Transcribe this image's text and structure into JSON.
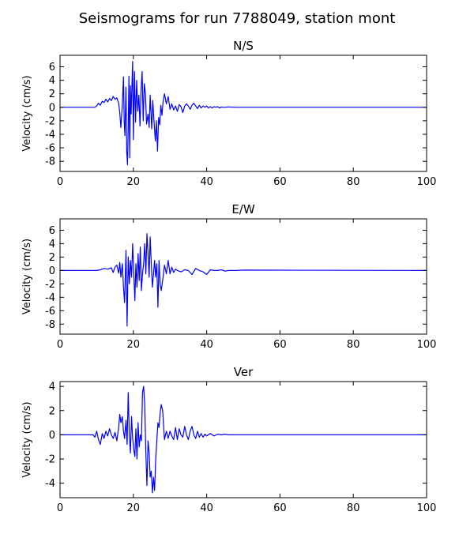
{
  "chart_data": {
    "type": "line",
    "title": "Seismograms for run 7788049, station mont",
    "panels": [
      {
        "title": "N/S",
        "ylabel": "Velocity (cm/s)",
        "xlim": [
          0,
          100
        ],
        "ylim": [
          -9.5,
          7.7
        ],
        "xticks": [
          0,
          20,
          40,
          60,
          80,
          100
        ],
        "yticks": [
          -8,
          -6,
          -4,
          -2,
          0,
          2,
          4,
          6
        ],
        "color": "#0000ff",
        "series": [
          {
            "x": [
              0,
              9.5,
              10,
              10.5,
              11,
              11.5,
              12,
              12.5,
              13,
              13.5,
              14,
              14.5,
              15,
              15.5,
              16,
              16.3,
              16.6,
              17,
              17.3,
              17.5,
              17.7,
              18,
              18.2,
              18.4,
              18.6,
              18.8,
              19,
              19.2,
              19.4,
              19.6,
              19.8,
              20,
              20.3,
              20.6,
              20.9,
              21.2,
              21.5,
              21.8,
              22.1,
              22.4,
              22.7,
              23,
              23.3,
              23.6,
              24,
              24.3,
              24.6,
              25,
              25.3,
              25.6,
              26,
              26.3,
              26.6,
              26.9,
              27.2,
              27.5,
              27.8,
              28.1,
              28.5,
              29,
              29.5,
              30,
              30.5,
              31,
              31.5,
              32,
              32.5,
              33,
              33.5,
              34,
              34.5,
              35,
              35.5,
              36,
              36.5,
              37,
              37.5,
              38,
              38.5,
              39,
              39.5,
              40,
              40.5,
              41,
              41.5,
              42,
              42.5,
              43,
              43.5,
              44,
              44.5,
              45,
              46,
              48,
              50,
              100
            ],
            "y": [
              0,
              0,
              0.2,
              0.6,
              0.3,
              0.9,
              0.7,
              1.2,
              0.8,
              1.3,
              1.0,
              1.6,
              1.2,
              1.4,
              0.6,
              -0.8,
              -3.0,
              0.5,
              4.5,
              -2.0,
              -4.2,
              3.0,
              -6.5,
              -8.5,
              -3.0,
              4.6,
              -7.5,
              3.2,
              -1.0,
              2.8,
              6.8,
              -4.8,
              5.3,
              -2.2,
              4.0,
              -0.6,
              1.8,
              -2.8,
              2.5,
              5.3,
              -2.0,
              3.5,
              2.0,
              -2.5,
              -1.0,
              -3.0,
              1.8,
              -3.2,
              1.0,
              -1.8,
              -5.0,
              -2.0,
              -6.5,
              -1.5,
              -2.6,
              0.3,
              -1.2,
              0.8,
              2.0,
              0.5,
              1.6,
              -0.3,
              0.5,
              -0.4,
              0.2,
              -0.6,
              0.4,
              0.1,
              -0.8,
              0.2,
              0.5,
              0.2,
              -0.3,
              0.3,
              0.6,
              0.2,
              -0.2,
              0.3,
              -0.1,
              0.2,
              0.0,
              0.2,
              -0.1,
              0.1,
              -0.1,
              0.1,
              0.0,
              0.1,
              -0.1,
              0.05,
              0.0,
              0.0,
              0.05,
              0.0,
              0.0,
              0.0
            ]
          }
        ]
      },
      {
        "title": "E/W",
        "ylabel": "Velocity (cm/s)",
        "xlim": [
          0,
          100
        ],
        "ylim": [
          -9.5,
          7.7
        ],
        "xticks": [
          0,
          20,
          40,
          60,
          80,
          100
        ],
        "yticks": [
          -8,
          -6,
          -4,
          -2,
          0,
          2,
          4,
          6
        ],
        "color": "#0000ff",
        "series": [
          {
            "x": [
              0,
              10,
              11,
              12,
              13,
              14,
              14.5,
              15,
              15.5,
              16,
              16.3,
              16.6,
              17,
              17.3,
              17.6,
              18,
              18.3,
              18.6,
              18.9,
              19.2,
              19.5,
              19.8,
              20.1,
              20.4,
              20.7,
              21,
              21.3,
              21.6,
              21.9,
              22.2,
              22.5,
              22.8,
              23.1,
              23.4,
              23.7,
              24,
              24.3,
              24.6,
              24.9,
              25.2,
              25.5,
              25.8,
              26.1,
              26.4,
              26.7,
              27,
              27.3,
              27.6,
              28,
              28.5,
              29,
              29.5,
              30,
              30.5,
              31,
              31.5,
              32,
              33,
              34,
              35,
              36,
              37,
              38,
              39,
              40,
              41,
              42,
              43,
              44,
              45,
              46,
              48,
              50,
              100
            ],
            "y": [
              0,
              0,
              0.1,
              0.3,
              0.2,
              0.4,
              -0.3,
              0.5,
              0.8,
              -0.4,
              1.2,
              -1.0,
              1.0,
              -2.5,
              -4.8,
              3.0,
              -8.3,
              2.0,
              -2.0,
              1.5,
              -1.0,
              4.0,
              -0.3,
              -4.5,
              1.0,
              -2.5,
              2.5,
              -1.5,
              3.5,
              -3.0,
              -0.5,
              1.0,
              4.0,
              -0.5,
              5.5,
              2.5,
              -1.0,
              5.0,
              1.0,
              -2.5,
              -0.5,
              1.5,
              -1.0,
              1.0,
              -5.5,
              1.5,
              -2.0,
              -3.0,
              -1.5,
              0.8,
              -0.5,
              1.5,
              -0.5,
              0.5,
              -0.3,
              0.2,
              0.0,
              -0.2,
              0.1,
              0.0,
              -0.6,
              0.3,
              0.0,
              -0.2,
              -0.6,
              0.1,
              0.0,
              0.0,
              0.1,
              -0.1,
              0.0,
              0.0,
              0.05,
              0.0
            ]
          }
        ]
      },
      {
        "title": "Ver",
        "ylabel": "Velocity (cm/s)",
        "xlim": [
          0,
          100
        ],
        "ylim": [
          -5.2,
          4.4
        ],
        "xticks": [
          0,
          20,
          40,
          60,
          80,
          100
        ],
        "yticks": [
          -4,
          -2,
          0,
          2,
          4
        ],
        "color": "#0000ff",
        "series": [
          {
            "x": [
              0,
              9,
              9.5,
              10,
              10.5,
              11,
              11.5,
              12,
              12.5,
              13,
              13.5,
              14,
              14.5,
              15,
              15.5,
              16,
              16.3,
              16.6,
              17,
              17.3,
              17.6,
              18,
              18.3,
              18.6,
              18.9,
              19.2,
              19.5,
              19.8,
              20.1,
              20.4,
              20.7,
              21,
              21.3,
              21.6,
              21.9,
              22.2,
              22.5,
              22.8,
              23.1,
              23.4,
              23.7,
              24,
              24.3,
              24.6,
              24.9,
              25.2,
              25.5,
              25.8,
              26.1,
              26.4,
              26.7,
              27,
              27.3,
              27.6,
              28,
              28.5,
              29,
              29.5,
              30,
              30.5,
              31,
              31.5,
              32,
              32.5,
              33,
              33.5,
              34,
              34.5,
              35,
              35.5,
              36,
              36.5,
              37,
              37.5,
              38,
              38.5,
              39,
              39.5,
              40,
              41,
              42,
              43,
              44,
              45,
              46,
              47,
              48,
              50,
              100
            ],
            "y": [
              0,
              0,
              -0.2,
              0.3,
              -0.4,
              -0.8,
              0.1,
              -0.3,
              0.3,
              -0.1,
              0.5,
              0.0,
              -0.3,
              0.2,
              -0.5,
              0.6,
              1.7,
              1.0,
              1.5,
              0.3,
              -0.3,
              1.2,
              -0.8,
              3.5,
              0.0,
              -1.5,
              1.5,
              -0.3,
              -1.2,
              -1.8,
              0.5,
              -2.0,
              1.0,
              -1.0,
              0.0,
              -0.5,
              3.5,
              4.0,
              2.5,
              -1.5,
              -4.2,
              -0.5,
              -1.5,
              -3.5,
              -3.0,
              -4.8,
              -3.5,
              -4.6,
              -2.0,
              -0.5,
              1.0,
              0.6,
              1.8,
              2.5,
              2.0,
              -0.4,
              0.3,
              -0.3,
              0.3,
              -0.1,
              -0.4,
              0.6,
              -0.4,
              0.5,
              0.0,
              -0.2,
              0.7,
              0.0,
              -0.4,
              0.3,
              0.7,
              0.0,
              -0.3,
              0.3,
              -0.2,
              0.1,
              -0.2,
              0.05,
              -0.1,
              0.1,
              -0.1,
              0.05,
              0.0,
              0.05,
              0.0,
              0.0,
              0.0,
              0.0,
              0.0
            ]
          }
        ]
      }
    ]
  }
}
